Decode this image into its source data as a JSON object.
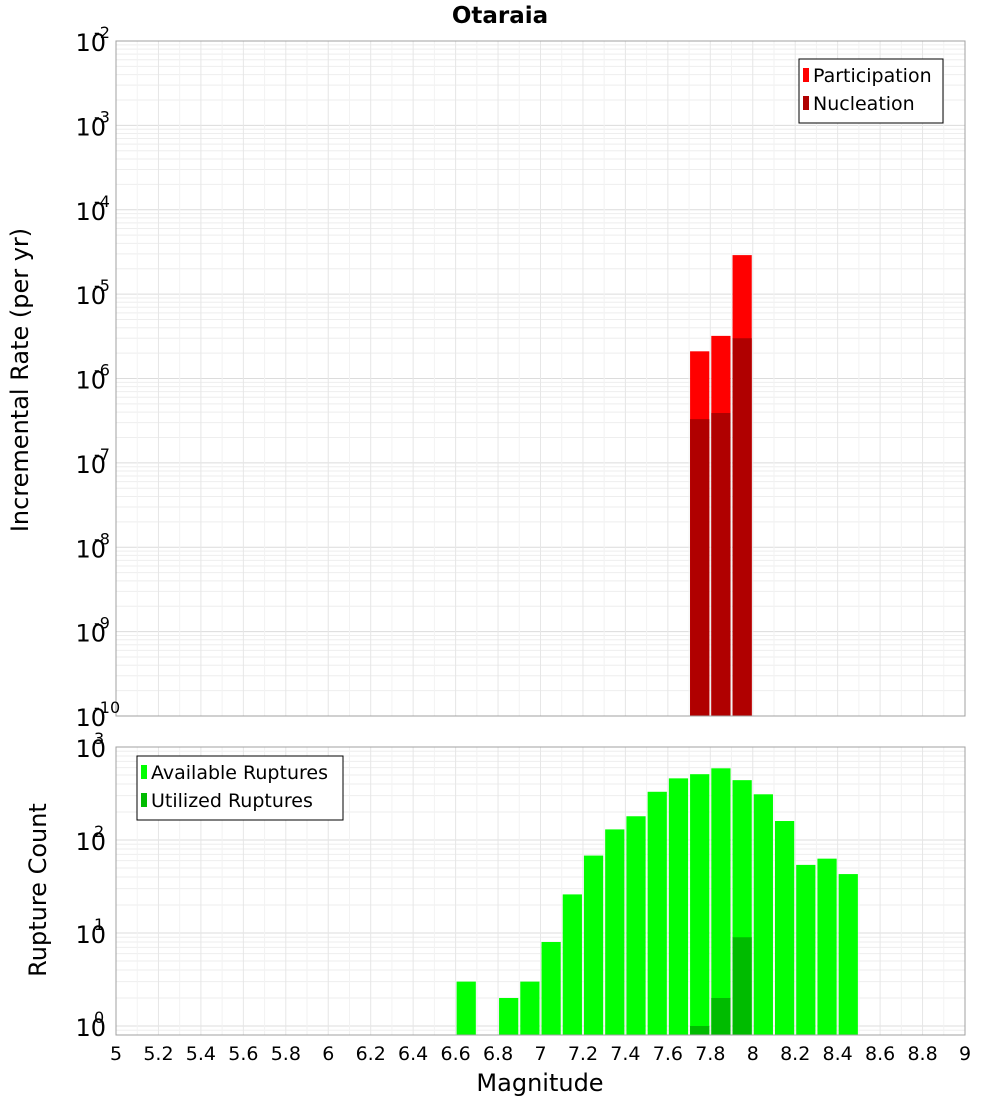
{
  "chart_data": [
    {
      "type": "bar",
      "title": "Otaraia",
      "xlabel": "",
      "ylabel": "Incremental Rate (per yr)",
      "yscale": "log",
      "ylim": [
        1e-10,
        0.01
      ],
      "xlim": [
        5,
        9
      ],
      "grid": true,
      "legend_position": "top-right",
      "y_ticks": [
        {
          "base": "10",
          "exp": "-10"
        },
        {
          "base": "10",
          "exp": "-9"
        },
        {
          "base": "10",
          "exp": "-8"
        },
        {
          "base": "10",
          "exp": "-7"
        },
        {
          "base": "10",
          "exp": "-6"
        },
        {
          "base": "10",
          "exp": "-5"
        },
        {
          "base": "10",
          "exp": "-4"
        },
        {
          "base": "10",
          "exp": "-3"
        },
        {
          "base": "10",
          "exp": "-2"
        }
      ],
      "x": [
        7.75,
        7.85,
        7.95
      ],
      "series": [
        {
          "name": "Participation",
          "color": "#ff0000",
          "values": [
            2.1e-06,
            3.2e-06,
            2.9e-05
          ]
        },
        {
          "name": "Nucleation",
          "color": "#b00000",
          "values": [
            3.3e-07,
            3.9e-07,
            3e-06
          ]
        }
      ]
    },
    {
      "type": "bar",
      "title": "",
      "xlabel": "Magnitude",
      "ylabel": "Rupture Count",
      "yscale": "log",
      "ylim": [
        0.8,
        1000
      ],
      "xlim": [
        5,
        9
      ],
      "grid": true,
      "legend_position": "top-left",
      "y_ticks": [
        {
          "base": "10",
          "exp": "0"
        },
        {
          "base": "10",
          "exp": "1"
        },
        {
          "base": "10",
          "exp": "2"
        },
        {
          "base": "10",
          "exp": "3"
        }
      ],
      "x_ticks": [
        "5",
        "5.2",
        "5.4",
        "5.6",
        "5.8",
        "6",
        "6.2",
        "6.4",
        "6.6",
        "6.8",
        "7",
        "7.2",
        "7.4",
        "7.6",
        "7.8",
        "8",
        "8.2",
        "8.4",
        "8.6",
        "8.8",
        "9"
      ],
      "x": [
        6.65,
        6.85,
        6.95,
        7.05,
        7.15,
        7.25,
        7.35,
        7.45,
        7.55,
        7.65,
        7.75,
        7.85,
        7.95,
        8.05,
        8.15,
        8.25,
        8.35,
        8.45
      ],
      "series": [
        {
          "name": "Available Ruptures",
          "color": "#00ff00",
          "values": [
            3,
            2,
            3,
            8,
            26,
            68,
            130,
            180,
            330,
            460,
            510,
            590,
            440,
            310,
            160,
            54,
            63,
            43
          ]
        },
        {
          "name": "Utilized Ruptures",
          "color": "#00bb00",
          "values": [
            null,
            null,
            null,
            null,
            null,
            null,
            null,
            null,
            null,
            null,
            1,
            2,
            9,
            null,
            null,
            null,
            null,
            null
          ]
        }
      ]
    }
  ]
}
